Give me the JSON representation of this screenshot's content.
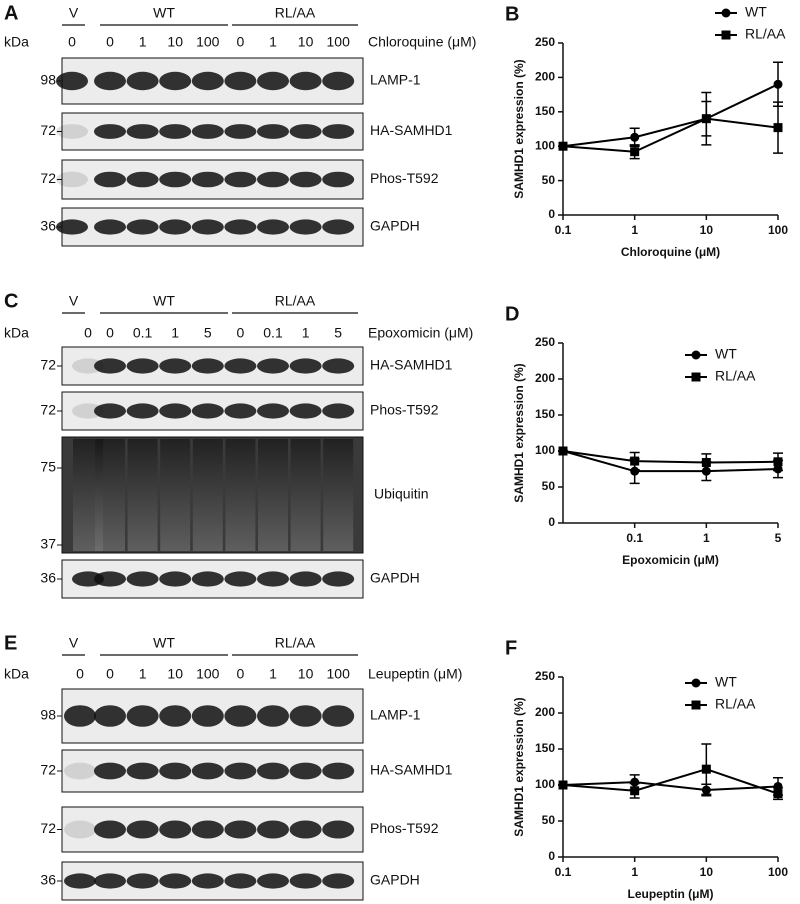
{
  "panels": [
    {
      "label": "A",
      "kda": "kDa",
      "groups": [
        "V",
        "WT",
        "RL/AA"
      ],
      "lanes": [
        "0",
        "0",
        "1",
        "10",
        "100",
        "0",
        "1",
        "10",
        "100"
      ],
      "treatment": "Chloroquine (μM)",
      "rows": [
        {
          "markers": [
            "98"
          ],
          "name": "LAMP-1"
        },
        {
          "markers": [
            "72"
          ],
          "name": "HA-SAMHD1"
        },
        {
          "markers": [
            "72"
          ],
          "name": "Phos-T592"
        },
        {
          "markers": [
            "36"
          ],
          "name": "GAPDH"
        }
      ]
    },
    {
      "label": "C",
      "kda": "kDa",
      "groups": [
        "V",
        "WT",
        "RL/AA"
      ],
      "lanes": [
        "0",
        "0",
        "0.1",
        "1",
        "5",
        "0",
        "0.1",
        "1",
        "5"
      ],
      "treatment": "Epoxomicin (μM)",
      "rows": [
        {
          "markers": [
            "72"
          ],
          "name": "HA-SAMHD1"
        },
        {
          "markers": [
            "72"
          ],
          "name": "Phos-T592"
        },
        {
          "markers": [
            "75",
            "37"
          ],
          "name": "Ubiquitin"
        },
        {
          "markers": [
            "36"
          ],
          "name": "GAPDH"
        }
      ]
    },
    {
      "label": "E",
      "kda": "kDa",
      "groups": [
        "V",
        "WT",
        "RL/AA"
      ],
      "lanes": [
        "0",
        "0",
        "1",
        "10",
        "100",
        "0",
        "1",
        "10",
        "100"
      ],
      "treatment": "Leupeptin (μM)",
      "rows": [
        {
          "markers": [
            "98"
          ],
          "name": "LAMP-1"
        },
        {
          "markers": [
            "72"
          ],
          "name": "HA-SAMHD1"
        },
        {
          "markers": [
            "72"
          ],
          "name": "Phos-T592"
        },
        {
          "markers": [
            "36"
          ],
          "name": "GAPDH"
        }
      ]
    }
  ],
  "chart_data": [
    {
      "type": "line",
      "label": "B",
      "ylabel": "SAMHD1 expression (%)",
      "xlabel": "Chloroquine (μM)",
      "xscale": "log",
      "x": [
        0.1,
        1,
        10,
        100
      ],
      "xlim": [
        0.1,
        100
      ],
      "xticks": [
        0.1,
        1,
        10,
        100
      ],
      "ylim": [
        0,
        250
      ],
      "yticks": [
        0,
        50,
        100,
        150,
        200,
        250
      ],
      "legend": "upper right",
      "series": [
        {
          "name": "WT",
          "marker": "circle",
          "color": "#000000",
          "values": [
            100,
            113,
            140,
            190
          ],
          "errors": [
            0,
            13,
            38,
            32
          ]
        },
        {
          "name": "RL/AA",
          "marker": "square",
          "color": "#000000",
          "values": [
            100,
            92,
            140,
            127
          ],
          "errors": [
            0,
            10,
            25,
            37
          ]
        }
      ]
    },
    {
      "type": "line",
      "label": "D",
      "ylabel": "SAMHD1 expression (%)",
      "xlabel": "Epoxomicin (μM)",
      "categories": [
        null,
        "0.1",
        "1",
        "5"
      ],
      "ylim": [
        0,
        250
      ],
      "yticks": [
        0,
        50,
        100,
        150,
        200,
        250
      ],
      "legend": "upper right",
      "series": [
        {
          "name": "WT",
          "marker": "circle",
          "color": "#000000",
          "values": [
            100,
            72,
            72,
            75
          ],
          "errors": [
            0,
            17,
            13,
            12
          ]
        },
        {
          "name": "RL/AA",
          "marker": "square",
          "color": "#000000",
          "values": [
            100,
            86,
            84,
            85
          ],
          "errors": [
            0,
            12,
            12,
            12
          ]
        }
      ]
    },
    {
      "type": "line",
      "label": "F",
      "ylabel": "SAMHD1 expression (%)",
      "xlabel": "Leupeptin (μM)",
      "xscale": "log",
      "x": [
        0.1,
        1,
        10,
        100
      ],
      "xlim": [
        0.1,
        100
      ],
      "xticks": [
        0.1,
        1,
        10,
        100
      ],
      "ylim": [
        0,
        250
      ],
      "yticks": [
        0,
        50,
        100,
        150,
        200,
        250
      ],
      "legend": "upper right",
      "series": [
        {
          "name": "WT",
          "marker": "circle",
          "color": "#000000",
          "values": [
            100,
            104,
            93,
            98
          ],
          "errors": [
            0,
            10,
            8,
            12
          ]
        },
        {
          "name": "RL/AA",
          "marker": "square",
          "color": "#000000",
          "values": [
            100,
            92,
            122,
            88
          ],
          "errors": [
            0,
            10,
            35,
            8
          ]
        }
      ]
    }
  ]
}
